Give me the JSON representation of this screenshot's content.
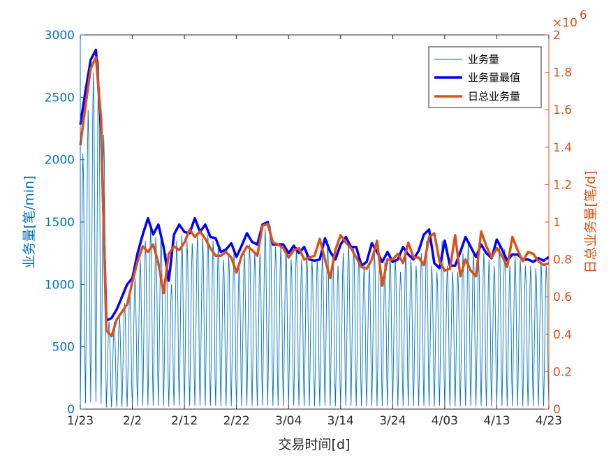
{
  "chart_data": {
    "type": "line",
    "title": "",
    "xlabel": "交易时间[d]",
    "ylabel_left": "业务量[笔/min]",
    "ylabel_right": "日总业务量[笔/d]",
    "right_axis_exponent": "10",
    "right_axis_exponent_power": "6",
    "right_axis_multiplier": "×",
    "x_ticks": [
      "1/23",
      "2/2",
      "2/12",
      "2/22",
      "3/04",
      "3/14",
      "3/24",
      "4/03",
      "4/13",
      "4/23"
    ],
    "x_range_days": [
      0,
      90
    ],
    "ylim_left": [
      0,
      3000
    ],
    "yticks_left": [
      "0",
      "500",
      "1000",
      "1500",
      "2000",
      "2500",
      "3000"
    ],
    "ylim_right": [
      0,
      2
    ],
    "yticks_right": [
      "0",
      "0.2",
      "0.4",
      "0.6",
      "0.8",
      "1",
      "1.2",
      "1.4",
      "1.6",
      "1.8",
      "2"
    ],
    "legend_position": "top-right",
    "colors": {
      "left_axis": "#0072BD",
      "right_axis": "#D95319",
      "minute_series": "#0072BD",
      "max_series": "#0000FF",
      "daily_series": "#D95319"
    },
    "series": [
      {
        "name": "业务量",
        "axis": "left",
        "style": "thin-line",
        "note_daily_peaks": "per-minute volume oscillating daily between near 0 and the daily maximum",
        "daily_peaks": [
          2050,
          2400,
          2700,
          2800,
          2200,
          700,
          700,
          750,
          850,
          950,
          1050,
          1200,
          1350,
          1450,
          1380,
          1400,
          1250,
          1000,
          1350,
          1400,
          1350,
          1330,
          1400,
          1370,
          1400,
          1350,
          1330,
          1200,
          1230,
          1250,
          1150,
          1250,
          1320,
          1250,
          1250,
          1450,
          1470,
          1300,
          1300,
          1280,
          1200,
          1300,
          1200,
          1250,
          1200,
          1200,
          1250,
          1350,
          1250,
          1150,
          1250,
          1330,
          1300,
          1250,
          1150,
          1150,
          1250,
          1250,
          1180,
          1250,
          1200,
          1100,
          1270,
          1200,
          1150,
          1250,
          1350,
          1150,
          1100,
          1350,
          1150,
          1100,
          1100,
          1250,
          1330,
          1250,
          1200,
          1250,
          1200,
          1150,
          1320,
          1280,
          1150,
          1230,
          1200,
          1150,
          1150,
          1130,
          1180,
          1150,
          1180
        ]
      },
      {
        "name": "业务量最值",
        "axis": "left",
        "x": [
          0,
          1,
          2,
          3,
          4,
          5,
          6,
          7,
          8,
          9,
          10,
          11,
          12,
          13,
          14,
          15,
          16,
          17,
          18,
          19,
          20,
          21,
          22,
          23,
          24,
          25,
          26,
          27,
          28,
          29,
          30,
          31,
          32,
          33,
          34,
          35,
          36,
          37,
          38,
          39,
          40,
          41,
          42,
          43,
          44,
          45,
          46,
          47,
          48,
          49,
          50,
          51,
          52,
          53,
          54,
          55,
          56,
          57,
          58,
          59,
          60,
          61,
          62,
          63,
          64,
          65,
          66,
          67,
          68,
          69,
          70,
          71,
          72,
          73,
          74,
          75,
          76,
          77,
          78,
          79,
          80,
          81,
          82,
          83,
          84,
          85,
          86,
          87,
          88,
          89,
          90
        ],
        "values": [
          2280,
          2550,
          2800,
          2880,
          2250,
          710,
          730,
          800,
          900,
          1000,
          1050,
          1250,
          1400,
          1530,
          1400,
          1480,
          1300,
          1030,
          1400,
          1480,
          1420,
          1410,
          1530,
          1420,
          1480,
          1380,
          1370,
          1260,
          1280,
          1330,
          1220,
          1310,
          1410,
          1340,
          1320,
          1480,
          1500,
          1320,
          1320,
          1320,
          1250,
          1310,
          1250,
          1300,
          1200,
          1190,
          1200,
          1370,
          1260,
          1200,
          1320,
          1380,
          1300,
          1300,
          1150,
          1180,
          1330,
          1260,
          1180,
          1260,
          1180,
          1200,
          1300,
          1240,
          1200,
          1270,
          1400,
          1440,
          1170,
          1130,
          1350,
          1150,
          1150,
          1260,
          1380,
          1300,
          1220,
          1320,
          1250,
          1210,
          1360,
          1280,
          1190,
          1240,
          1240,
          1200,
          1200,
          1180,
          1210,
          1190,
          1220
        ]
      },
      {
        "name": "日总业务量",
        "axis": "right",
        "x": [
          0,
          1,
          2,
          3,
          4,
          5,
          6,
          7,
          8,
          9,
          10,
          11,
          12,
          13,
          14,
          15,
          16,
          17,
          18,
          19,
          20,
          21,
          22,
          23,
          24,
          25,
          26,
          27,
          28,
          29,
          30,
          31,
          32,
          33,
          34,
          35,
          36,
          37,
          38,
          39,
          40,
          41,
          42,
          43,
          44,
          45,
          46,
          47,
          48,
          49,
          50,
          51,
          52,
          53,
          54,
          55,
          56,
          57,
          58,
          59,
          60,
          61,
          62,
          63,
          64,
          65,
          66,
          67,
          68,
          69,
          70,
          71,
          72,
          73,
          74,
          75,
          76,
          77,
          78,
          79,
          80,
          81,
          82,
          83,
          84,
          85,
          86,
          87,
          88,
          89,
          90
        ],
        "values": [
          1.41,
          1.62,
          1.82,
          1.88,
          1.55,
          0.42,
          0.39,
          0.48,
          0.52,
          0.56,
          0.68,
          0.79,
          0.87,
          0.84,
          0.88,
          0.78,
          0.62,
          0.83,
          0.87,
          0.85,
          0.89,
          0.96,
          0.92,
          0.95,
          0.91,
          0.86,
          0.82,
          0.82,
          0.84,
          0.81,
          0.73,
          0.82,
          0.87,
          0.85,
          0.82,
          0.98,
          0.99,
          0.89,
          0.88,
          0.86,
          0.81,
          0.85,
          0.86,
          0.8,
          0.81,
          0.82,
          0.91,
          0.8,
          0.7,
          0.85,
          0.93,
          0.89,
          0.86,
          0.81,
          0.76,
          0.75,
          0.8,
          0.9,
          0.66,
          0.8,
          0.8,
          0.83,
          0.78,
          0.89,
          0.81,
          0.81,
          0.77,
          0.92,
          0.94,
          0.79,
          0.74,
          0.75,
          0.93,
          0.71,
          0.8,
          0.74,
          0.71,
          0.95,
          0.87,
          0.81,
          0.86,
          0.82,
          0.76,
          0.92,
          0.85,
          0.79,
          0.84,
          0.83,
          0.79,
          0.77,
          0.78
        ]
      }
    ]
  }
}
